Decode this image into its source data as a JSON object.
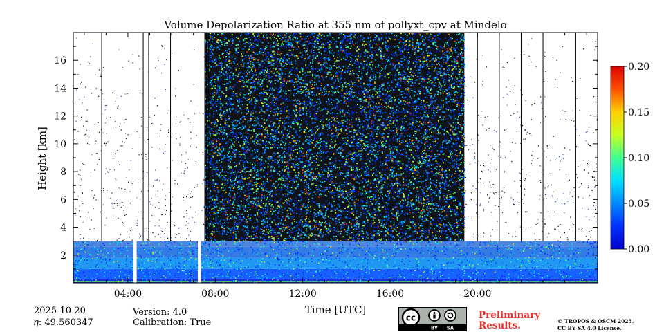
{
  "chart_data": {
    "type": "heatmap",
    "title": "Volume Depolarization Ratio at 355 nm of pollyxt_cpv at Mindelo",
    "xlabel": "Time [UTC]",
    "ylabel": "Height [km]",
    "x_range_hours": [
      1.5,
      25.5
    ],
    "y_range_km": [
      0,
      18
    ],
    "x_ticks": [
      {
        "value": 4,
        "label": "04:00"
      },
      {
        "value": 8,
        "label": "08:00"
      },
      {
        "value": 12,
        "label": "12:00"
      },
      {
        "value": 16,
        "label": "16:00"
      },
      {
        "value": 20,
        "label": "20:00"
      }
    ],
    "y_ticks": [
      {
        "value": 2,
        "label": "2"
      },
      {
        "value": 4,
        "label": "4"
      },
      {
        "value": 6,
        "label": "6"
      },
      {
        "value": 8,
        "label": "8"
      },
      {
        "value": 10,
        "label": "10"
      },
      {
        "value": 12,
        "label": "12"
      },
      {
        "value": 14,
        "label": "14"
      },
      {
        "value": 16,
        "label": "16"
      }
    ],
    "colorbar": {
      "range": [
        0.0,
        0.2
      ],
      "ticks": [
        {
          "value": 0.0,
          "label": "0.00"
        },
        {
          "value": 0.05,
          "label": "0.05"
        },
        {
          "value": 0.1,
          "label": "0.10"
        },
        {
          "value": 0.15,
          "label": "0.15"
        },
        {
          "value": 0.2,
          "label": "0.20"
        }
      ],
      "colormap": "jet"
    },
    "regions": {
      "noisy_daytime_hours": [
        7.5,
        19.4
      ],
      "aerosol_layer_top_km": 3.0,
      "data_gaps_hours": [
        [
          4.25,
          4.4
        ],
        [
          7.2,
          7.35
        ]
      ],
      "profile_lines_hours": [
        2.8,
        4.7,
        4.95,
        5.95,
        7.6,
        7.7,
        20.0,
        21.0,
        22.0,
        23.0,
        24.5
      ]
    }
  },
  "footer": {
    "date": "2025-10-20",
    "eta": "𝜂: 49.560347",
    "version": "Version: 4.0",
    "calibration": "Calibration: True",
    "license_badge": {
      "cc": "cc",
      "by": "BY",
      "sa": "SA"
    },
    "preliminary_line1": "Preliminary",
    "preliminary_line2": "Results.",
    "copyright_line1": "© TROPOS & OSCM 2025.",
    "copyright_line2": "CC BY SA 4.0 License."
  }
}
